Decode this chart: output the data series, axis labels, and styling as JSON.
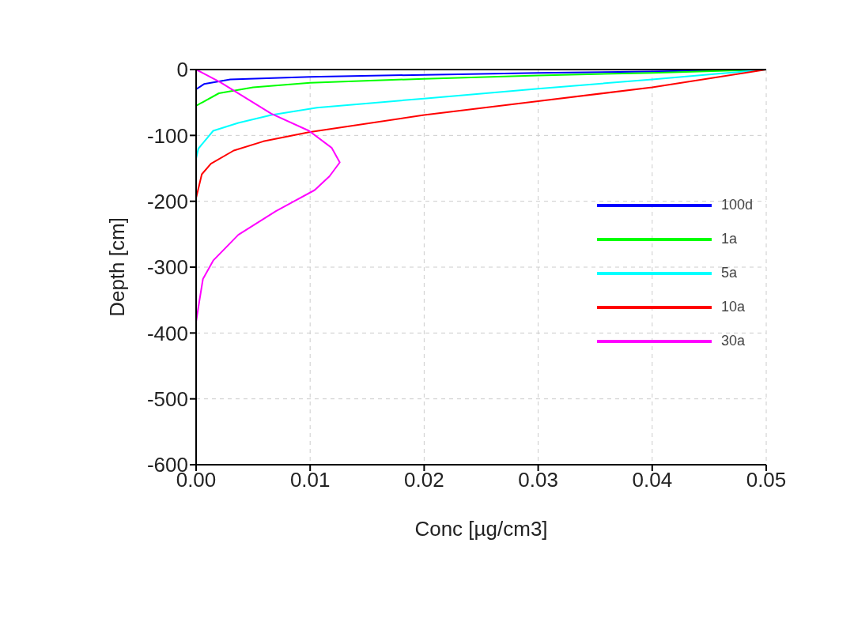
{
  "chart_data": {
    "type": "line",
    "xlabel": "Conc [µg/cm3]",
    "ylabel": "Depth [cm]",
    "xlim": [
      0,
      0.05
    ],
    "xticks": [
      {
        "value": 0,
        "label": "0.00"
      },
      {
        "value": 0.01,
        "label": "0.01"
      },
      {
        "value": 0.02,
        "label": "0.02"
      },
      {
        "value": 0.03,
        "label": "0.03"
      },
      {
        "value": 0.04,
        "label": "0.04"
      },
      {
        "value": 0.05,
        "label": "0.05"
      }
    ],
    "ylim": [
      -600,
      0
    ],
    "yticks": [
      -600,
      -500,
      -400,
      -300,
      -200,
      -100,
      0
    ],
    "grid": true,
    "legend": "right",
    "marker": "none",
    "line_style": "solid",
    "series": [
      {
        "name": "100d",
        "color": "#0000ff",
        "x": [
          0.05,
          0.04,
          0.03,
          0.02,
          0.01,
          0.003,
          0.0007,
          0
        ],
        "values": [
          0,
          -3,
          -5,
          -8,
          -11,
          -15,
          -22,
          -30
        ]
      },
      {
        "name": "1a",
        "color": "#00ff00",
        "x": [
          0.05,
          0.04,
          0.03,
          0.02,
          0.01,
          0.005,
          0.002,
          0
        ],
        "values": [
          0,
          -5,
          -9,
          -14,
          -20,
          -27,
          -36,
          -55
        ]
      },
      {
        "name": "5a",
        "color": "#00ffff",
        "x": [
          0.05,
          0.04,
          0.03,
          0.02,
          0.0106,
          0.0066,
          0.0037,
          0.0015,
          0.0002,
          0
        ],
        "values": [
          0,
          -15,
          -29,
          -44,
          -58,
          -69,
          -81,
          -93,
          -120,
          -135
        ]
      },
      {
        "name": "10a",
        "color": "#ff0000",
        "x": [
          0.05,
          0.04,
          0.03,
          0.02,
          0.0099,
          0.0059,
          0.0033,
          0.0013,
          0.0005,
          0
        ],
        "values": [
          0,
          -27,
          -48,
          -69,
          -95,
          -109,
          -123,
          -143,
          -159,
          -195
        ]
      },
      {
        "name": "30a",
        "color": "#ff00ff",
        "x": [
          0,
          0.0021,
          0.0066,
          0.0099,
          0.0119,
          0.0126,
          0.0117,
          0.0104,
          0.007,
          0.0037,
          0.0015,
          0.0006,
          0.0003,
          0
        ],
        "values": [
          0,
          -19,
          -67,
          -93,
          -119,
          -141,
          -162,
          -183,
          -215,
          -251,
          -290,
          -318,
          -350,
          -383
        ]
      }
    ]
  }
}
